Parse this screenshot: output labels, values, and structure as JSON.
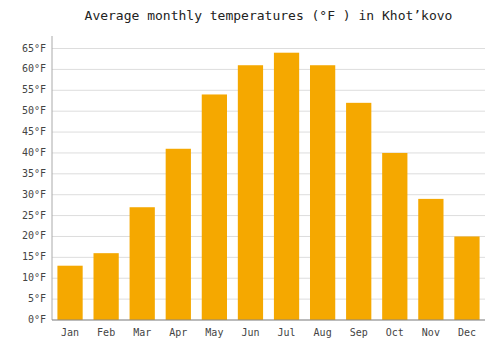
{
  "chart_data": {
    "type": "bar",
    "title": "Average monthly temperatures (°F ) in Khot’kovo",
    "categories": [
      "Jan",
      "Feb",
      "Mar",
      "Apr",
      "May",
      "Jun",
      "Jul",
      "Aug",
      "Sep",
      "Oct",
      "Nov",
      "Dec"
    ],
    "values": [
      13,
      16,
      27,
      41,
      54,
      61,
      64,
      61,
      52,
      40,
      29,
      20
    ],
    "color": "#F5A800",
    "ylim": [
      0,
      68
    ],
    "yticks": [
      {
        "value": 0,
        "label": "0°F"
      },
      {
        "value": 5,
        "label": "5°F"
      },
      {
        "value": 10,
        "label": "10°F"
      },
      {
        "value": 15,
        "label": "15°F"
      },
      {
        "value": 20,
        "label": "20°F"
      },
      {
        "value": 25,
        "label": "25°F"
      },
      {
        "value": 30,
        "label": "30°F"
      },
      {
        "value": 35,
        "label": "35°F"
      },
      {
        "value": 40,
        "label": "40°F"
      },
      {
        "value": 45,
        "label": "45°F"
      },
      {
        "value": 50,
        "label": "50°F"
      },
      {
        "value": 55,
        "label": "55°F"
      },
      {
        "value": 60,
        "label": "60°F"
      },
      {
        "value": 65,
        "label": "65°F"
      }
    ],
    "grid": true
  }
}
